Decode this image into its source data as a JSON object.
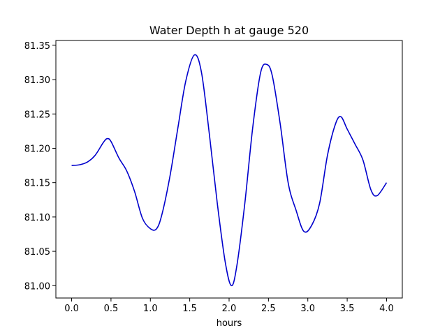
{
  "chart_data": {
    "type": "line",
    "title": "Water Depth h at gauge 520",
    "xlabel": "hours",
    "ylabel": "",
    "xlim": [
      -0.2,
      4.2
    ],
    "ylim": [
      80.982,
      81.357
    ],
    "xticks": [
      0.0,
      0.5,
      1.0,
      1.5,
      2.0,
      2.5,
      3.0,
      3.5,
      4.0
    ],
    "xtick_labels": [
      "0.0",
      "0.5",
      "1.0",
      "1.5",
      "2.0",
      "2.5",
      "3.0",
      "3.5",
      "4.0"
    ],
    "yticks": [
      81.0,
      81.05,
      81.1,
      81.15,
      81.2,
      81.25,
      81.3,
      81.35
    ],
    "ytick_labels": [
      "81.00",
      "81.05",
      "81.10",
      "81.15",
      "81.20",
      "81.25",
      "81.30",
      "81.35"
    ],
    "grid": false,
    "line_color": "#0000cc",
    "series": [
      {
        "x": [
          0.0,
          0.1,
          0.2,
          0.3,
          0.4,
          0.45,
          0.5,
          0.6,
          0.7,
          0.8,
          0.9,
          1.0,
          1.08,
          1.15,
          1.25,
          1.35,
          1.45,
          1.56,
          1.65,
          1.75,
          1.85,
          1.95,
          2.03,
          2.1,
          2.2,
          2.3,
          2.4,
          2.48,
          2.55,
          2.65,
          2.75,
          2.85,
          2.95,
          3.05,
          3.15,
          3.25,
          3.35,
          3.42,
          3.5,
          3.6,
          3.7,
          3.8,
          3.88,
          4.0
        ],
        "y": [
          81.175,
          81.176,
          81.18,
          81.19,
          81.208,
          81.214,
          81.21,
          81.186,
          81.167,
          81.137,
          81.098,
          81.083,
          81.083,
          81.105,
          81.16,
          81.23,
          81.298,
          81.336,
          81.31,
          81.22,
          81.12,
          81.035,
          81.0,
          81.03,
          81.12,
          81.23,
          81.31,
          81.322,
          81.305,
          81.235,
          81.15,
          81.11,
          81.079,
          81.088,
          81.12,
          81.19,
          81.235,
          81.246,
          81.228,
          81.206,
          81.183,
          81.14,
          81.131,
          81.15
        ]
      }
    ]
  }
}
